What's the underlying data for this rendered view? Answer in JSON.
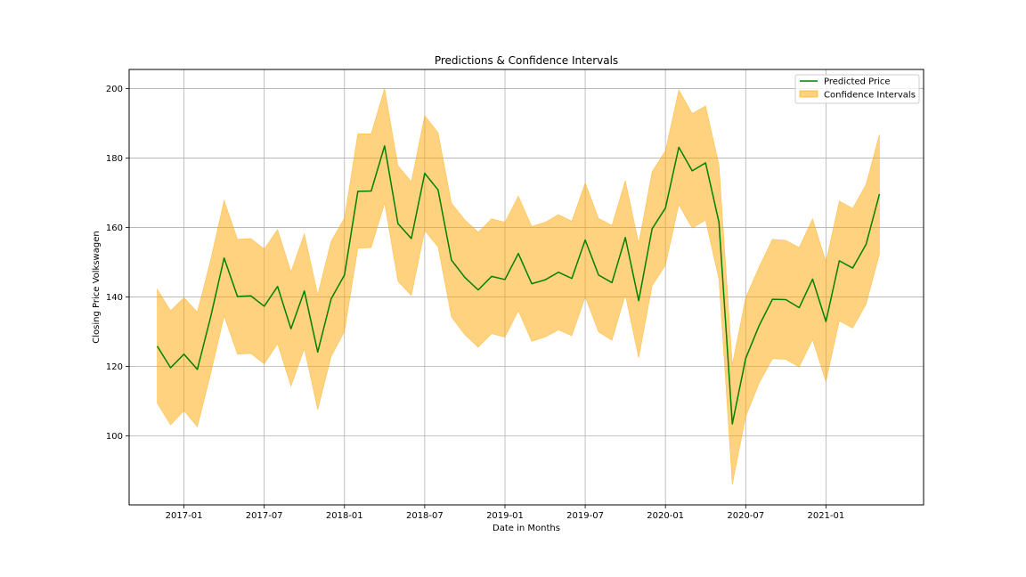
{
  "chart_data": {
    "type": "line",
    "title": "Predictions & Confidence Intervals",
    "xlabel": "Date in Months",
    "ylabel": "Closing Price Volkswagen",
    "grid": true,
    "legend_position": "top-right",
    "x_ticks": [
      "2017-01",
      "2017-07",
      "2018-01",
      "2018-07",
      "2019-01",
      "2019-07",
      "2020-01",
      "2020-07",
      "2021-01"
    ],
    "y_ticks": [
      100,
      120,
      140,
      160,
      180,
      200
    ],
    "ylim": [
      80.1,
      205.5
    ],
    "xlim_months": [
      -4.1,
      55.3
    ],
    "x_start_month_index": -2,
    "x_start_label": "2016-10",
    "colors": {
      "line": "#008000",
      "band": "#ffa500",
      "band_opacity": 0.5,
      "grid": "#b0b0b0"
    },
    "series": [
      {
        "name": "Predicted Price",
        "values": [
          125.8,
          119.6,
          123.5,
          119.1,
          134.3,
          151.2,
          140.1,
          140.3,
          137.3,
          143.0,
          130.8,
          141.7,
          124.1,
          139.4,
          146.3,
          170.4,
          170.5,
          183.5,
          161.1,
          156.8,
          175.6,
          170.8,
          150.6,
          145.6,
          142.0,
          145.9,
          145.0,
          152.5,
          143.8,
          144.9,
          147.1,
          145.3,
          156.4,
          146.3,
          144.1,
          157.1,
          138.9,
          159.6,
          165.6,
          183.1,
          176.3,
          178.6,
          161.5,
          103.4,
          122.3,
          131.7,
          139.3,
          139.2,
          136.9,
          145.1,
          132.9,
          150.4,
          148.3,
          155.1,
          169.6
        ]
      },
      {
        "name": "Confidence Intervals",
        "lower": [
          109.4,
          103.1,
          107.2,
          102.6,
          117.9,
          134.5,
          123.5,
          123.7,
          120.7,
          126.5,
          114.3,
          125.1,
          107.5,
          122.8,
          130.0,
          154.0,
          154.2,
          167.0,
          144.5,
          140.4,
          159.1,
          154.4,
          134.2,
          129.1,
          125.5,
          129.4,
          128.4,
          136.0,
          127.2,
          128.4,
          130.5,
          128.8,
          140.0,
          129.9,
          127.5,
          140.6,
          122.4,
          143.2,
          149.1,
          166.6,
          159.8,
          162.1,
          145.0,
          86.0,
          105.5,
          115.1,
          122.2,
          122.0,
          119.8,
          127.7,
          115.6,
          133.1,
          131.0,
          137.9,
          152.3
        ],
        "upper": [
          142.2,
          136.0,
          139.8,
          135.6,
          150.7,
          167.8,
          156.6,
          156.8,
          153.8,
          159.4,
          147.2,
          158.2,
          140.6,
          156.0,
          162.7,
          187.0,
          187.0,
          200.0,
          177.8,
          173.2,
          192.2,
          187.3,
          167.0,
          162.2,
          158.6,
          162.5,
          161.5,
          169.0,
          160.3,
          161.5,
          163.7,
          161.8,
          172.8,
          162.6,
          160.6,
          173.5,
          155.4,
          176.0,
          182.1,
          199.6,
          192.8,
          195.0,
          178.1,
          120.5,
          139.8,
          148.6,
          156.6,
          156.3,
          154.2,
          162.5,
          150.1,
          167.6,
          165.5,
          172.4,
          186.8
        ]
      }
    ]
  }
}
